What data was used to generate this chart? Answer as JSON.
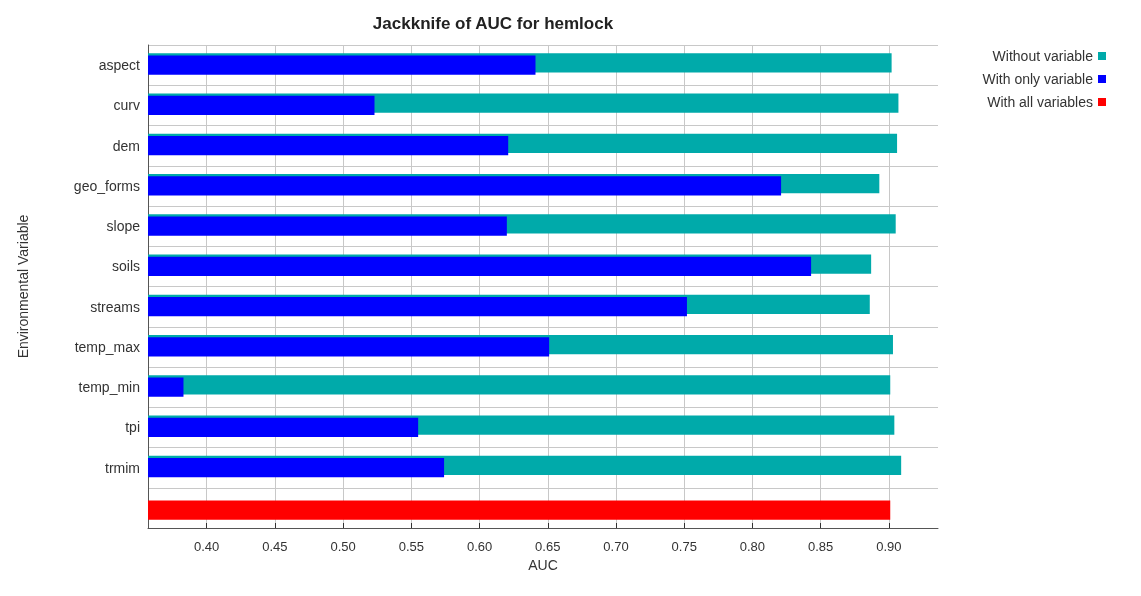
{
  "chart_data": {
    "type": "bar",
    "orientation": "horizontal",
    "title": "Jackknife of AUC for hemlock",
    "xlabel": "AUC",
    "ylabel": "Environmental Variable",
    "categories": [
      "aspect",
      "curv",
      "dem",
      "geo_forms",
      "slope",
      "soils",
      "streams",
      "temp_max",
      "temp_min",
      "tpi",
      "trmim",
      null
    ],
    "series": [
      {
        "name": "Without variable",
        "color": "#00aaaa",
        "values": [
          0.902,
          0.907,
          0.906,
          0.893,
          0.905,
          0.887,
          0.886,
          0.903,
          0.901,
          0.904,
          0.909,
          null
        ]
      },
      {
        "name": "With only variable",
        "color": "#0000ff",
        "values": [
          0.641,
          0.523,
          0.621,
          0.821,
          0.62,
          0.843,
          0.752,
          0.651,
          0.383,
          0.555,
          0.574,
          null
        ]
      },
      {
        "name": "With all variables",
        "color": "#ff0000",
        "values": [
          null,
          null,
          null,
          null,
          null,
          null,
          null,
          null,
          null,
          null,
          null,
          0.901
        ]
      }
    ],
    "xlim": [
      0.357,
      0.936
    ],
    "xticks": [
      {
        "value": 0.4,
        "label": "0.40"
      },
      {
        "value": 0.45,
        "label": "0.45"
      },
      {
        "value": 0.5,
        "label": "0.50"
      },
      {
        "value": 0.55,
        "label": "0.55"
      },
      {
        "value": 0.6,
        "label": "0.60"
      },
      {
        "value": 0.65,
        "label": "0.65"
      },
      {
        "value": 0.7,
        "label": "0.70"
      },
      {
        "value": 0.75,
        "label": "0.75"
      },
      {
        "value": 0.8,
        "label": "0.80"
      },
      {
        "value": 0.85,
        "label": "0.85"
      },
      {
        "value": 0.9,
        "label": "0.90"
      }
    ],
    "grid": true,
    "legend": "top right"
  }
}
